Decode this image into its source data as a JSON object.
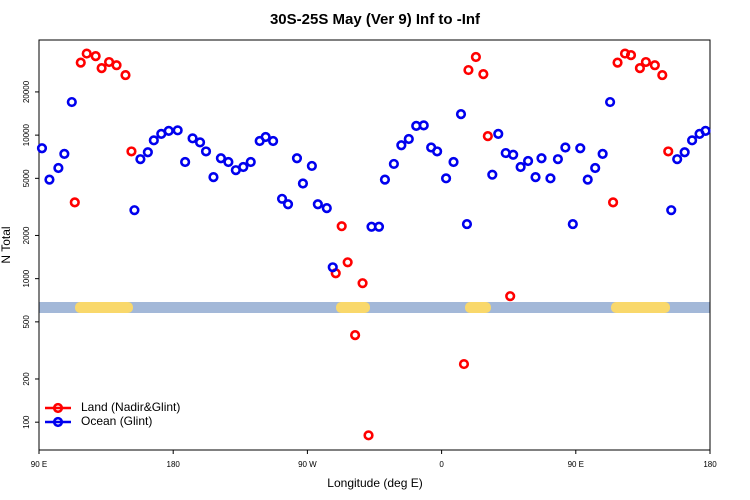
{
  "chart_data": {
    "type": "scatter",
    "title": "30S-25S May (Ver 9)   Inf to -Inf",
    "xlabel": "Longitude (deg E)",
    "ylabel": "N Total",
    "log_y": true,
    "legend": "lower left",
    "xlim": [
      90,
      540
    ],
    "ylim": [
      64,
      46000
    ],
    "xticks": [
      {
        "value": 90,
        "label": "90 E"
      },
      {
        "value": 180,
        "label": "180"
      },
      {
        "value": 270,
        "label": "90 W"
      },
      {
        "value": 360,
        "label": "0"
      },
      {
        "value": 450,
        "label": "90 E"
      },
      {
        "value": 540,
        "label": "180"
      }
    ],
    "yticks": [
      100,
      200,
      500,
      1000,
      2000,
      5000,
      10000,
      20000
    ],
    "series": [
      {
        "name": "Land (Nadir&Glint)",
        "color": "#ff0000",
        "x": [
          114,
          118,
          122,
          128,
          132,
          137,
          142,
          148,
          152,
          289,
          293,
          297,
          302,
          307,
          311,
          375,
          378,
          383,
          388,
          391,
          406,
          475,
          478,
          483,
          487,
          493,
          497,
          503,
          508,
          512
        ],
        "values": [
          3400,
          32000,
          37000,
          35500,
          29300,
          32300,
          30700,
          26200,
          7700,
          1090,
          2320,
          1300,
          404,
          930,
          81,
          254,
          28400,
          35000,
          26600,
          9840,
          755,
          3400,
          32000,
          37000,
          36100,
          29300,
          32300,
          30700,
          26200,
          7700
        ]
      },
      {
        "name": "Ocean (Glint)",
        "color": "#0000ee",
        "x": [
          92,
          97,
          103,
          107,
          112,
          154,
          158,
          163,
          167,
          172,
          177,
          183,
          188,
          193,
          198,
          202,
          207,
          212,
          217,
          222,
          227,
          232,
          238,
          242,
          247,
          253,
          257,
          263,
          267,
          273,
          277,
          283,
          287,
          313,
          318,
          322,
          328,
          333,
          338,
          343,
          348,
          353,
          357,
          363,
          368,
          373,
          377,
          394,
          398,
          403,
          408,
          413,
          418,
          423,
          427,
          433,
          438,
          443,
          448,
          453,
          458,
          463,
          468,
          473,
          514,
          518,
          523,
          528,
          533,
          537
        ],
        "values": [
          8100,
          4900,
          5900,
          7400,
          17000,
          3000,
          6800,
          7600,
          9200,
          10200,
          10700,
          10800,
          6500,
          9500,
          8900,
          7700,
          5100,
          6900,
          6500,
          5700,
          6000,
          6500,
          9100,
          9700,
          9100,
          3600,
          3300,
          6900,
          4600,
          6100,
          3300,
          3100,
          1200,
          2300,
          2300,
          4900,
          6300,
          8500,
          9400,
          11600,
          11700,
          8200,
          7700,
          5000,
          6500,
          14000,
          2400,
          5300,
          10200,
          7500,
          7300,
          6000,
          6600,
          5100,
          6900,
          5000,
          6800,
          8200,
          2400,
          8100,
          4900,
          5900,
          7400,
          17000,
          3000,
          6800,
          7600,
          9200,
          10200,
          10700
        ]
      }
    ]
  }
}
